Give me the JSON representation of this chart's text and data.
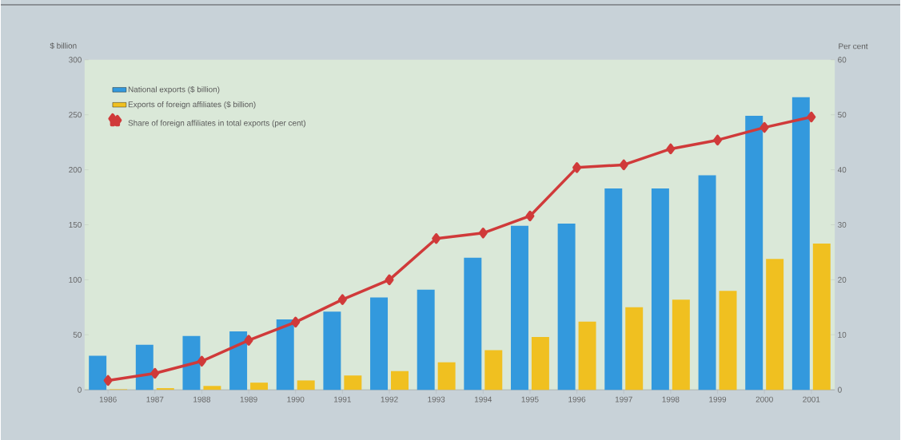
{
  "chart_data": {
    "type": "bar",
    "ylabel": "$ billion",
    "y2label": "Per cent",
    "categories": [
      "1986",
      "1987",
      "1988",
      "1989",
      "1990",
      "1991",
      "1992",
      "1993",
      "1994",
      "1995",
      "1996",
      "1997",
      "1998",
      "1999",
      "2000",
      "2001"
    ],
    "series": [
      {
        "name": "National exports ($ billion)",
        "color": "#3399dd",
        "values": [
          31,
          41,
          49,
          53,
          64,
          71,
          84,
          91,
          120,
          149,
          151,
          183,
          183,
          195,
          249,
          266
        ]
      },
      {
        "name": "Exports of foreign affiliates ($ billion)",
        "color": "#f0c020",
        "values": [
          0.5,
          1.5,
          3.5,
          6.5,
          8.5,
          13,
          17,
          25,
          36,
          48,
          62,
          75,
          82,
          90,
          119,
          133
        ]
      },
      {
        "name": "Share of foreign affiliates in total exports (per cent)",
        "color": "#d03a3a",
        "type": "line",
        "axis": "y2",
        "marker": "diamond",
        "values": [
          1.7,
          3,
          5.2,
          9,
          12.3,
          16.4,
          20,
          27.5,
          28.5,
          31.6,
          40.4,
          40.9,
          43.8,
          45.4,
          47.7,
          49.6
        ]
      }
    ],
    "ylim": [
      0,
      300
    ],
    "yticks": [
      0,
      50,
      100,
      150,
      200,
      250,
      300
    ],
    "y2lim": [
      0,
      60
    ],
    "y2ticks": [
      0,
      10,
      20,
      30,
      40,
      50,
      60
    ],
    "grid": false,
    "legend": "top left"
  }
}
